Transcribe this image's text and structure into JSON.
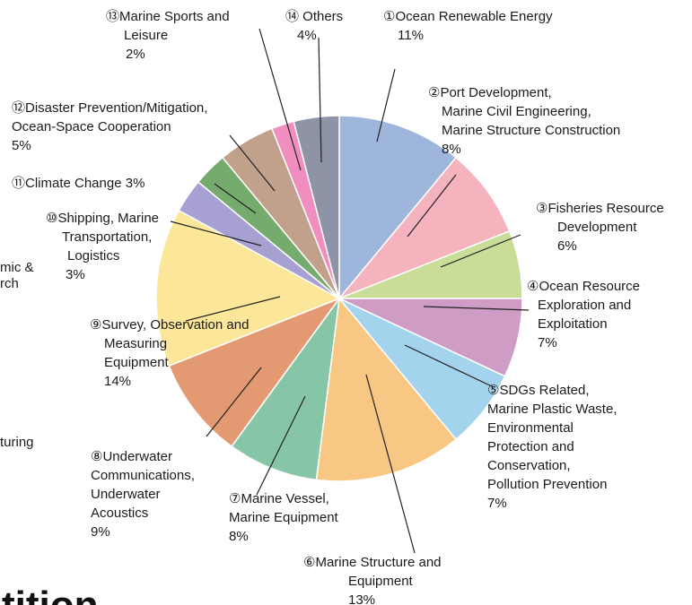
{
  "chart_data": {
    "type": "pie",
    "title": "",
    "start": "top, clockwise",
    "slices": [
      {
        "num": "①",
        "label": "Ocean Renewable Energy",
        "value": 11,
        "pct": "11%",
        "color": "#9fb6dc"
      },
      {
        "num": "②",
        "label": "Port Development, Marine Civil Engineering, Marine Structure Construction",
        "value": 8,
        "pct": "8%",
        "color": "#f4b3bd"
      },
      {
        "num": "③",
        "label": "Fisheries Resource Development",
        "value": 6,
        "pct": "6%",
        "color": "#c7dd98"
      },
      {
        "num": "④",
        "label": "Ocean Resource Exploration and Exploitation",
        "value": 7,
        "pct": "7%",
        "color": "#cf9cc5"
      },
      {
        "num": "⑤",
        "label": "SDGs Related, Marine Plastic Waste, Environmental Protection and Conservation, Pollution Prevention",
        "value": 7,
        "pct": "7%",
        "color": "#a4d3ee"
      },
      {
        "num": "⑥",
        "label": "Marine Structure and Equipment",
        "value": 13,
        "pct": "13%",
        "color": "#f9c784"
      },
      {
        "num": "⑦",
        "label": "Marine Vessel, Marine Equipment",
        "value": 8,
        "pct": "8%",
        "color": "#86c6a6"
      },
      {
        "num": "⑧",
        "label": "Underwater Communications, Underwater Acoustics",
        "value": 9,
        "pct": "9%",
        "color": "#e39a73"
      },
      {
        "num": "⑨",
        "label": "Survey, Observation and Measuring Equipment",
        "value": 14,
        "pct": "14%",
        "color": "#fbe699"
      },
      {
        "num": "⑩",
        "label": "Shipping, Marine Transportation, Logistics",
        "value": 3,
        "pct": "3%",
        "color": "#a7a0d3"
      },
      {
        "num": "⑪",
        "label": "Climate Change",
        "value": 3,
        "pct": "3%",
        "color": "#76ab6e"
      },
      {
        "num": "⑫",
        "label": "Disaster Prevention/Mitigation, Ocean-Space Cooperation",
        "value": 5,
        "pct": "5%",
        "color": "#c1a08c"
      },
      {
        "num": "⑬",
        "label": "Marine Sports and Leisure",
        "value": 2,
        "pct": "2%",
        "color": "#f08fbf"
      },
      {
        "num": "⑭",
        "label": "Others",
        "value": 4,
        "pct": "4%",
        "color": "#8e93a6"
      }
    ],
    "labels": [
      {
        "lines": [
          "①Ocean Renewable Energy",
          "11%"
        ]
      },
      {
        "lines": [
          "②Port Development,",
          "Marine Civil Engineering,",
          "Marine Structure Construction",
          "8%"
        ]
      },
      {
        "lines": [
          "③Fisheries Resource",
          "Development",
          "6%"
        ]
      },
      {
        "lines": [
          "④Ocean Resource",
          "Exploration and",
          "Exploitation",
          "7%"
        ]
      },
      {
        "lines": [
          "⑤SDGs Related,",
          "Marine Plastic Waste,",
          "Environmental",
          "Protection and",
          "Conservation,",
          "Pollution Prevention",
          "7%"
        ]
      },
      {
        "lines": [
          "⑥Marine Structure and",
          "Equipment",
          "13%"
        ]
      },
      {
        "lines": [
          "⑦Marine Vessel,",
          "Marine Equipment",
          "8%"
        ]
      },
      {
        "lines": [
          "⑧Underwater",
          "Communications,",
          "Underwater",
          "Acoustics",
          "9%"
        ]
      },
      {
        "lines": [
          "⑨Survey, Observation and",
          "Measuring",
          "Equipment",
          "14%"
        ]
      },
      {
        "lines": [
          "⑩Shipping, Marine",
          "Transportation,",
          "Logistics",
          "3%"
        ]
      },
      {
        "lines": [
          "⑪Climate Change  3%"
        ]
      },
      {
        "lines": [
          "⑫Disaster Prevention/Mitigation,",
          "Ocean-Space Cooperation",
          "5%"
        ]
      },
      {
        "lines": [
          "⑬Marine Sports and",
          "Leisure",
          "2%"
        ]
      },
      {
        "lines": [
          "⑭ Others",
          "4%"
        ]
      }
    ],
    "edge_text": {
      "left_1": "mic &",
      "left_2": "rch",
      "left_3": "turing",
      "bottom": "tition"
    }
  }
}
